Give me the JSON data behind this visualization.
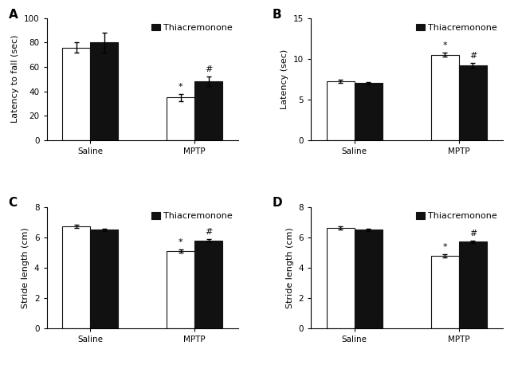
{
  "panels": [
    {
      "label": "A",
      "ylabel": "Latency to fall (sec)",
      "ylim": [
        0,
        100
      ],
      "yticks": [
        0,
        20,
        40,
        60,
        80,
        100
      ],
      "groups": [
        "Saline",
        "MPTP"
      ],
      "values_white": [
        76,
        35
      ],
      "values_black": [
        80,
        48
      ],
      "errors_white": [
        4,
        3
      ],
      "errors_black": [
        8,
        4
      ],
      "sig_white": [
        "",
        "*"
      ],
      "sig_black": [
        "",
        "#"
      ],
      "legend": true
    },
    {
      "label": "B",
      "ylabel": "Latency (sec)",
      "ylim": [
        0,
        15
      ],
      "yticks": [
        0,
        5,
        10,
        15
      ],
      "groups": [
        "Saline",
        "MPTP"
      ],
      "values_white": [
        7.2,
        10.5
      ],
      "values_black": [
        7.0,
        9.2
      ],
      "errors_white": [
        0.2,
        0.25
      ],
      "errors_black": [
        0.15,
        0.3
      ],
      "sig_white": [
        "",
        "*"
      ],
      "sig_black": [
        "",
        "#"
      ],
      "legend": true
    },
    {
      "label": "C",
      "ylabel": "Stride length (cm)",
      "ylim": [
        0,
        8
      ],
      "yticks": [
        0,
        2,
        4,
        6,
        8
      ],
      "groups": [
        "Saline",
        "MPTP"
      ],
      "values_white": [
        6.7,
        5.1
      ],
      "values_black": [
        6.5,
        5.8
      ],
      "errors_white": [
        0.1,
        0.1
      ],
      "errors_black": [
        0.08,
        0.1
      ],
      "sig_white": [
        "",
        "*"
      ],
      "sig_black": [
        "",
        "#"
      ],
      "legend": true
    },
    {
      "label": "D",
      "ylabel": "Stride length (cm)",
      "ylim": [
        0,
        8
      ],
      "yticks": [
        0,
        2,
        4,
        6,
        8
      ],
      "groups": [
        "Saline",
        "MPTP"
      ],
      "values_white": [
        6.6,
        4.8
      ],
      "values_black": [
        6.5,
        5.7
      ],
      "errors_white": [
        0.1,
        0.1
      ],
      "errors_black": [
        0.08,
        0.1
      ],
      "sig_white": [
        "",
        "*"
      ],
      "sig_black": [
        "",
        "#"
      ],
      "legend": true
    }
  ],
  "legend_label": "Thiacremonone",
  "bar_width": 0.32,
  "group_centers": [
    0.5,
    1.7
  ],
  "xlim": [
    0,
    2.2
  ],
  "xtick_positions": [
    0.5,
    1.7
  ],
  "color_white": "#ffffff",
  "color_black": "#111111",
  "edgecolor": "#111111",
  "background_color": "#ffffff",
  "fontsize_label": 8,
  "fontsize_tick": 7.5,
  "fontsize_panel": 11,
  "fontsize_sig": 8,
  "fontsize_legend": 8,
  "capsize": 2.5,
  "elinewidth": 1.0,
  "linewidth_bar": 0.8
}
